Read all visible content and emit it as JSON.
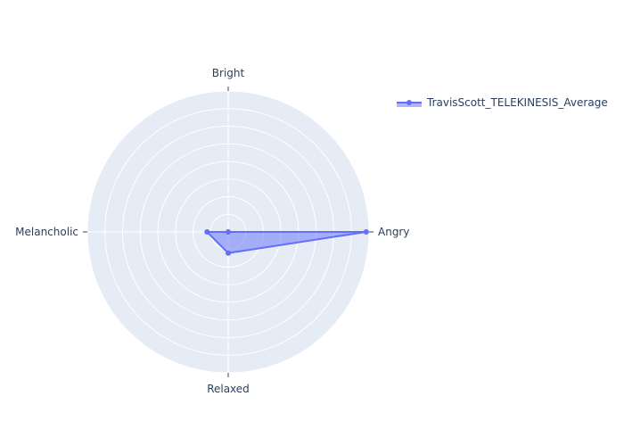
{
  "chart_data": {
    "type": "radar",
    "axes": [
      "Bright",
      "Angry",
      "Relaxed",
      "Melancholic"
    ],
    "range": [
      0,
      1
    ],
    "grid": true,
    "legend_position": "top-right",
    "series": [
      {
        "name": "TravisScott_TELEKINESIS_Average",
        "values": [
          0.0,
          0.98,
          0.15,
          0.15
        ],
        "color": "#636efa",
        "fill": "toself"
      }
    ]
  }
}
